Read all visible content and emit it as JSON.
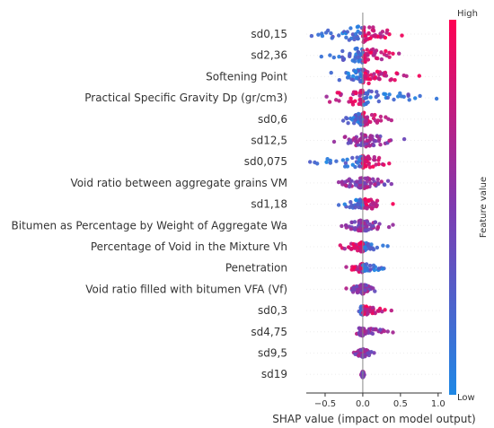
{
  "chart_data": {
    "type": "scatter",
    "title": "",
    "xlabel": "SHAP value (impact on model output)",
    "ylabel": "",
    "xlim": [
      -0.75,
      1.05
    ],
    "xticks": [
      -0.5,
      0.0,
      0.5,
      1.0
    ],
    "xtick_labels": [
      "−0.5",
      "0.0",
      "0.5",
      "1.0"
    ],
    "grid": false,
    "colorbar": {
      "title": "Feature value",
      "high_label": "High",
      "low_label": "Low",
      "low_color": "#1e88e5",
      "mid_color": "#7e3bb0",
      "high_color": "#ff0052"
    },
    "features": [
      {
        "name": "sd0,15",
        "min": -0.68,
        "max": 0.52,
        "spread": 1.0,
        "low_side": "neg"
      },
      {
        "name": "sd2,36",
        "min": -0.55,
        "max": 0.48,
        "spread": 0.95,
        "low_side": "neg"
      },
      {
        "name": "Softening Point",
        "min": -0.42,
        "max": 0.75,
        "spread": 0.9,
        "low_side": "neg"
      },
      {
        "name": "Practical Specific Gravity Dp (gr/cm3)",
        "min": -0.48,
        "max": 0.98,
        "spread": 0.95,
        "low_side": "pos"
      },
      {
        "name": "sd0,6",
        "min": -0.26,
        "max": 0.38,
        "spread": 0.8,
        "low_side": "neg"
      },
      {
        "name": "sd12,5",
        "min": -0.38,
        "max": 0.55,
        "spread": 0.8,
        "low_side": "mixed"
      },
      {
        "name": "sd0,075",
        "min": -0.7,
        "max": 0.35,
        "spread": 0.8,
        "low_side": "neg"
      },
      {
        "name": "Void ratio between aggregate grains VM",
        "min": -0.32,
        "max": 0.38,
        "spread": 0.75,
        "low_side": "mixed"
      },
      {
        "name": "sd1,18",
        "min": -0.32,
        "max": 0.4,
        "spread": 0.7,
        "low_side": "neg"
      },
      {
        "name": "Bitumen as Percentage by Weight of Aggregate Wa",
        "min": -0.28,
        "max": 0.4,
        "spread": 0.7,
        "low_side": "mixed"
      },
      {
        "name": "Percentage of Void in the Mixture Vh",
        "min": -0.3,
        "max": 0.33,
        "spread": 0.65,
        "low_side": "pos"
      },
      {
        "name": "Penetration",
        "min": -0.22,
        "max": 0.28,
        "spread": 0.55,
        "low_side": "pos"
      },
      {
        "name": "Void ratio filled with bitumen VFA (Vf)",
        "min": -0.22,
        "max": 0.16,
        "spread": 0.6,
        "low_side": "mixed"
      },
      {
        "name": "sd0,3",
        "min": -0.05,
        "max": 0.38,
        "spread": 0.55,
        "low_side": "neg"
      },
      {
        "name": "sd4,75",
        "min": -0.08,
        "max": 0.4,
        "spread": 0.5,
        "low_side": "mixed"
      },
      {
        "name": "sd9,5",
        "min": -0.12,
        "max": 0.15,
        "spread": 0.5,
        "low_side": "mixed"
      },
      {
        "name": "sd19",
        "min": -0.02,
        "max": 0.02,
        "spread": 0.4,
        "low_side": "mixed"
      }
    ]
  }
}
